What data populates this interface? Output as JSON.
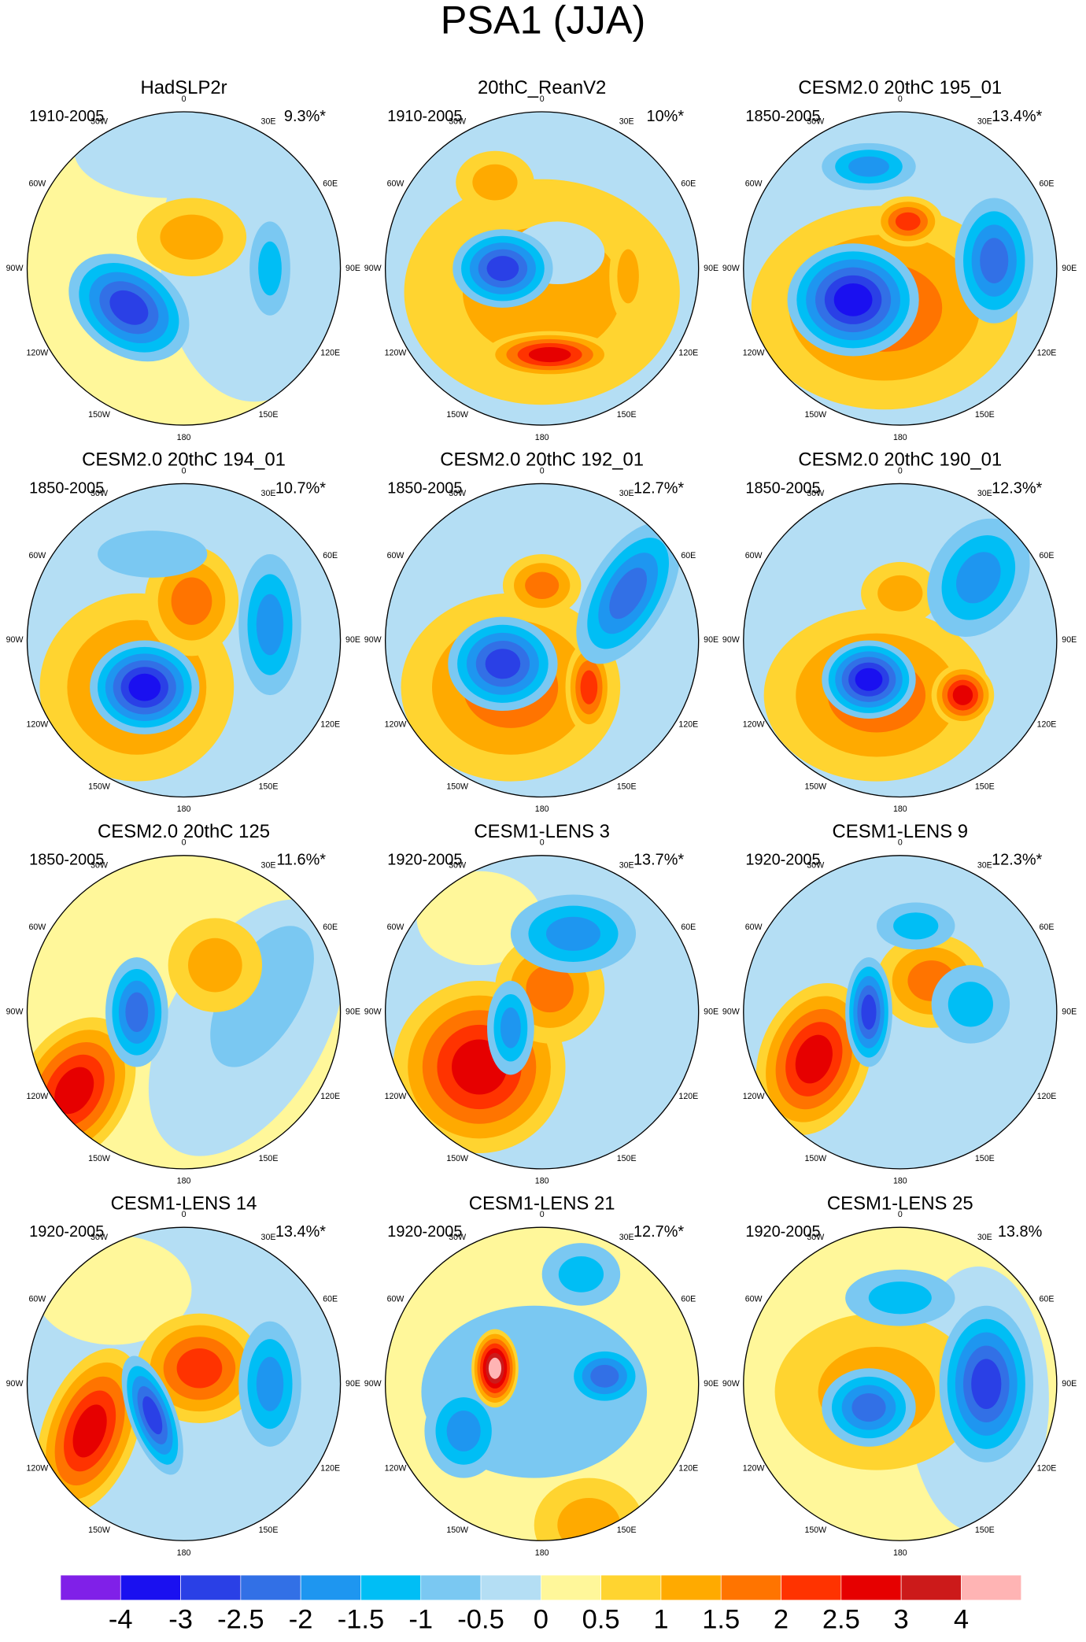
{
  "title": "PSA1 (JJA)",
  "lon_labels": [
    "0",
    "30E",
    "60E",
    "90E",
    "120E",
    "150E",
    "180",
    "150W",
    "120W",
    "90W",
    "60W",
    "30W"
  ],
  "panels": [
    {
      "title": "HadSLP2r",
      "period": "1910-2005",
      "variance": "9.3%*"
    },
    {
      "title": "20thC_ReanV2",
      "period": "1910-2005",
      "variance": "10%*"
    },
    {
      "title": "CESM2.0 20thC 195_01",
      "period": "1850-2005",
      "variance": "13.4%*"
    },
    {
      "title": "CESM2.0 20thC 194_01",
      "period": "1850-2005",
      "variance": "10.7%*"
    },
    {
      "title": "CESM2.0 20thC 192_01",
      "period": "1850-2005",
      "variance": "12.7%*"
    },
    {
      "title": "CESM2.0 20thC 190_01",
      "period": "1850-2005",
      "variance": "12.3%*"
    },
    {
      "title": "CESM2.0 20thC 125",
      "period": "1850-2005",
      "variance": "11.6%*"
    },
    {
      "title": "CESM1-LENS 3",
      "period": "1920-2005",
      "variance": "13.7%*"
    },
    {
      "title": "CESM1-LENS 9",
      "period": "1920-2005",
      "variance": "12.3%*"
    },
    {
      "title": "CESM1-LENS 14",
      "period": "1920-2005",
      "variance": "13.4%*"
    },
    {
      "title": "CESM1-LENS 21",
      "period": "1920-2005",
      "variance": "12.7%*"
    },
    {
      "title": "CESM1-LENS 25",
      "period": "1920-2005",
      "variance": "13.8%"
    }
  ],
  "colorbar": {
    "ticks": [
      -4,
      -3,
      -2.5,
      -2,
      -1.5,
      -1,
      -0.5,
      0,
      0.5,
      1,
      1.5,
      2,
      2.5,
      3,
      4
    ],
    "colors": [
      "#8020e8",
      "#1a10f0",
      "#2a40e6",
      "#3270e6",
      "#1e96f0",
      "#00bef5",
      "#7ac8f2",
      "#b4def4",
      "#fff79a",
      "#ffd430",
      "#ffaa00",
      "#ff7400",
      "#ff3300",
      "#e60000",
      "#cc1a1a",
      "#ffb4b4"
    ]
  }
}
